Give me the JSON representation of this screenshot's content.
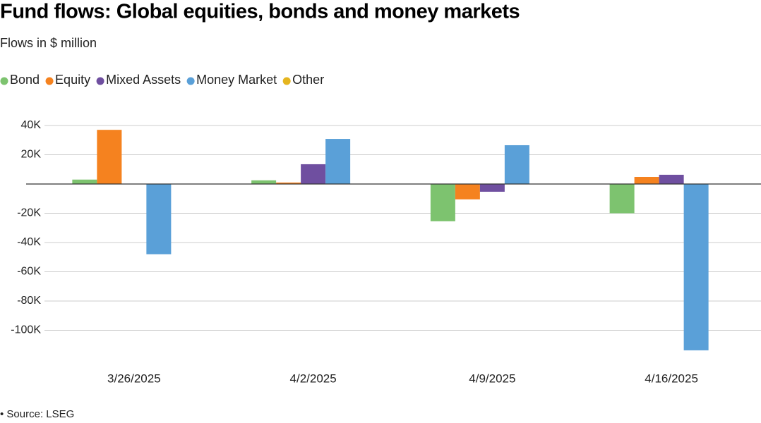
{
  "chart_data": {
    "type": "bar",
    "title": "Fund flows: Global equities, bonds and money markets",
    "subtitle": "Flows in $ million",
    "source": "• Source: LSEG",
    "categories": [
      "3/26/2025",
      "4/2/2025",
      "4/9/2025",
      "4/16/2025"
    ],
    "series": [
      {
        "name": "Bond",
        "color": "#7dc36f",
        "values": [
          3000,
          2500,
          -25500,
          -20000
        ]
      },
      {
        "name": "Equity",
        "color": "#f5821f",
        "values": [
          37000,
          1000,
          -10500,
          4800
        ]
      },
      {
        "name": "Mixed Assets",
        "color": "#6f4fa0",
        "values": [
          0,
          13500,
          -5300,
          6300
        ]
      },
      {
        "name": "Money Market",
        "color": "#5aa0d8",
        "values": [
          -48000,
          30800,
          26500,
          -113700
        ]
      },
      {
        "name": "Other",
        "color": "#e5b51f",
        "values": [
          0,
          0,
          0,
          0
        ]
      }
    ],
    "ylim": [
      -120000,
      46000
    ],
    "yticks": [
      {
        "value": -100000,
        "label": "-100K"
      },
      {
        "value": -80000,
        "label": "-80K"
      },
      {
        "value": -60000,
        "label": "-60K"
      },
      {
        "value": -40000,
        "label": "-40K"
      },
      {
        "value": -20000,
        "label": "-20K"
      },
      {
        "value": 20000,
        "label": "20K"
      },
      {
        "value": 40000,
        "label": "40K"
      }
    ],
    "grid": true
  }
}
